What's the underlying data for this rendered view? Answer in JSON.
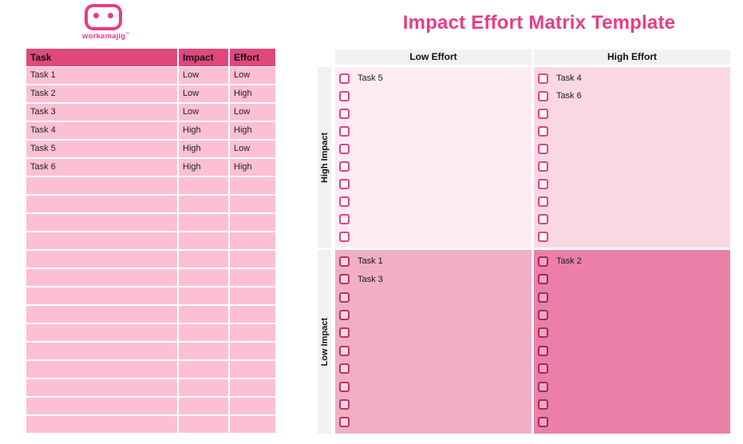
{
  "brand": {
    "logo_text": "workamajig",
    "logo_mark": "™"
  },
  "title": "Impact Effort Matrix Template",
  "colors": {
    "brand_pink": "#e73c87",
    "table_header_bg": "#e0487d",
    "table_row_bg": "#fdc0d3",
    "matrix_header_bg": "#f1f1f1",
    "q_high_low_bg": "#fdecf3",
    "q_high_high_bg": "#f9d8e2",
    "q_low_low_bg": "#f1afc4",
    "q_low_high_bg": "#ec7fa8",
    "cb_border_light": "#e83e80",
    "cb_border_dark1": "#bd3166",
    "cb_border_dark2": "#a02c57"
  },
  "task_table": {
    "headers": [
      "Task",
      "Impact",
      "Effort"
    ],
    "rows": [
      {
        "task": "Task 1",
        "impact": "Low",
        "effort": "Low"
      },
      {
        "task": "Task 2",
        "impact": "Low",
        "effort": "High"
      },
      {
        "task": "Task 3",
        "impact": "Low",
        "effort": "Low"
      },
      {
        "task": "Task 4",
        "impact": "High",
        "effort": "High"
      },
      {
        "task": "Task 5",
        "impact": "High",
        "effort": "Low"
      },
      {
        "task": "Task 6",
        "impact": "High",
        "effort": "High"
      }
    ],
    "empty_row_count": 14
  },
  "matrix": {
    "column_headers": [
      "Low Effort",
      "High Effort"
    ],
    "row_headers": [
      "High Impact",
      "Low Impact"
    ],
    "quadrants": [
      {
        "id": "high-impact-low-effort",
        "tasks": [
          "Task 5"
        ],
        "slots": 10
      },
      {
        "id": "high-impact-high-effort",
        "tasks": [
          "Task 4",
          "Task 6"
        ],
        "slots": 10
      },
      {
        "id": "low-impact-low-effort",
        "tasks": [
          "Task 1",
          "Task 3"
        ],
        "slots": 10
      },
      {
        "id": "low-impact-high-effort",
        "tasks": [
          "Task 2"
        ],
        "slots": 10
      }
    ]
  }
}
